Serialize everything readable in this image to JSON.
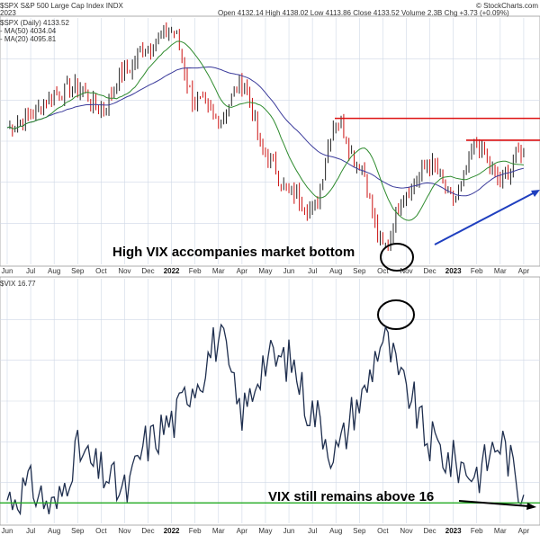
{
  "header": {
    "symbol_line": "$SPX S&P 500 Large Cap Index INDX",
    "date_line": "2023",
    "ohlc": "Open 4132.14  High 4138.02  Low 4113.86  Close 4133.52  Volume 2.3B  Chg +3.73 (+0.09%)",
    "watermark": "© StockCharts.com",
    "legend_price": "$SPX (Daily) 4133.52",
    "legend_ma1": "- MA(50) 4034.04",
    "legend_ma2": "- MA(20) 4095.81",
    "vix_label": "$VIX 16.77"
  },
  "annotations": {
    "market_bottom": "High VIX accompanies market bottom",
    "vix_above": "VIX still remains above 16"
  },
  "colors": {
    "price_up": "#222222",
    "price_down": "#cc1111",
    "ma_fast": "#2e8b2e",
    "ma_slow": "#3b3b9b",
    "vix_line": "#1f2f4f",
    "resistance": "#dd1111",
    "support": "#22aa22",
    "arrow_blue": "#1f3fbf",
    "grid": "#cfd8e6"
  },
  "chart_data": [
    {
      "type": "line",
      "name": "S&P 500",
      "categories": [
        "Jun",
        "Jul",
        "Aug",
        "Sep",
        "Oct",
        "Nov",
        "Dec",
        "2022",
        "Feb",
        "Mar",
        "Apr",
        "May",
        "Jun",
        "Jul",
        "Aug",
        "Sep",
        "Oct",
        "Nov",
        "Dec",
        "2023",
        "Feb",
        "Mar",
        "Apr"
      ],
      "series": [
        {
          "values": [
            4250,
            4320,
            4430,
            4470,
            4350,
            4560,
            4700,
            4780,
            4400,
            4300,
            4500,
            4100,
            3900,
            3800,
            4290,
            4050,
            3590,
            3900,
            4050,
            3850,
            4150,
            3960,
            4133
          ]
        }
      ],
      "resistance": [
        4300,
        4180
      ],
      "ylim": [
        3500,
        4850
      ]
    },
    {
      "type": "line",
      "name": "$VIX",
      "categories": [
        "Jun",
        "Jul",
        "Aug",
        "Sep",
        "Oct",
        "Nov",
        "Dec",
        "2022",
        "Feb",
        "Mar",
        "Apr",
        "May",
        "Jun",
        "Jul",
        "Aug",
        "Sep",
        "Oct",
        "Nov",
        "Dec",
        "2023",
        "Feb",
        "Mar",
        "Apr"
      ],
      "series": [
        {
          "values": [
            16.5,
            17.5,
            15.5,
            21,
            19,
            17,
            22,
            24,
            28,
            32,
            25,
            30,
            30,
            25,
            21,
            26,
            32,
            27,
            22,
            20,
            19,
            22,
            16.8
          ]
        }
      ],
      "support": 16,
      "ylim": [
        14,
        38
      ]
    }
  ]
}
